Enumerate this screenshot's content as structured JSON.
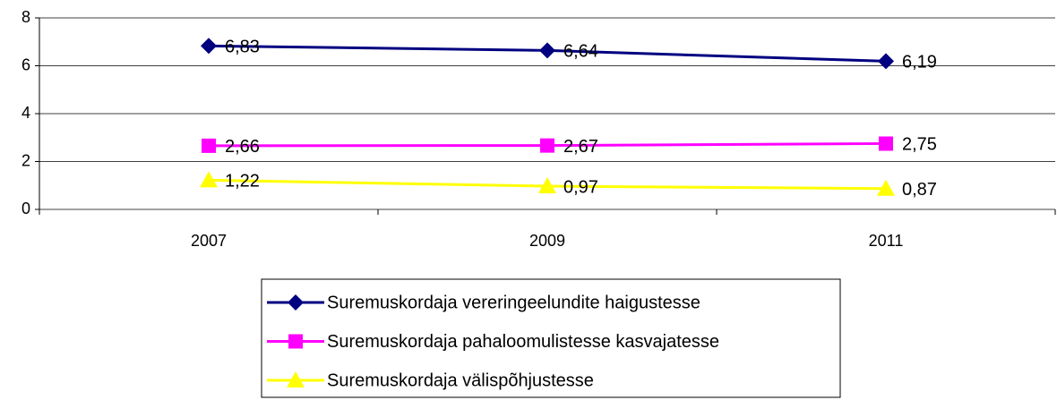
{
  "chart_data": {
    "type": "line",
    "categories": [
      "2007",
      "2009",
      "2011"
    ],
    "ylim": [
      0,
      8
    ],
    "yticks": [
      0,
      2,
      4,
      6,
      8
    ],
    "grid": true,
    "series": [
      {
        "name": "Suremuskordaja vereringeelundite haigustesse",
        "color": "#000080",
        "marker": "diamond",
        "values": [
          6.83,
          6.64,
          6.19
        ],
        "value_labels": [
          "6,83",
          "6,64",
          "6,19"
        ]
      },
      {
        "name": "Suremuskordaja pahaloomulistesse kasvajatesse",
        "color": "#ff00ff",
        "marker": "square",
        "values": [
          2.66,
          2.67,
          2.75
        ],
        "value_labels": [
          "2,66",
          "2,67",
          "2,75"
        ]
      },
      {
        "name": "Suremuskordaja välispõhjustesse",
        "color": "#ffff00",
        "marker": "triangle",
        "values": [
          1.22,
          0.97,
          0.87
        ],
        "value_labels": [
          "1,22",
          "0,97",
          "0,87"
        ]
      }
    ],
    "legend": "bottom"
  }
}
